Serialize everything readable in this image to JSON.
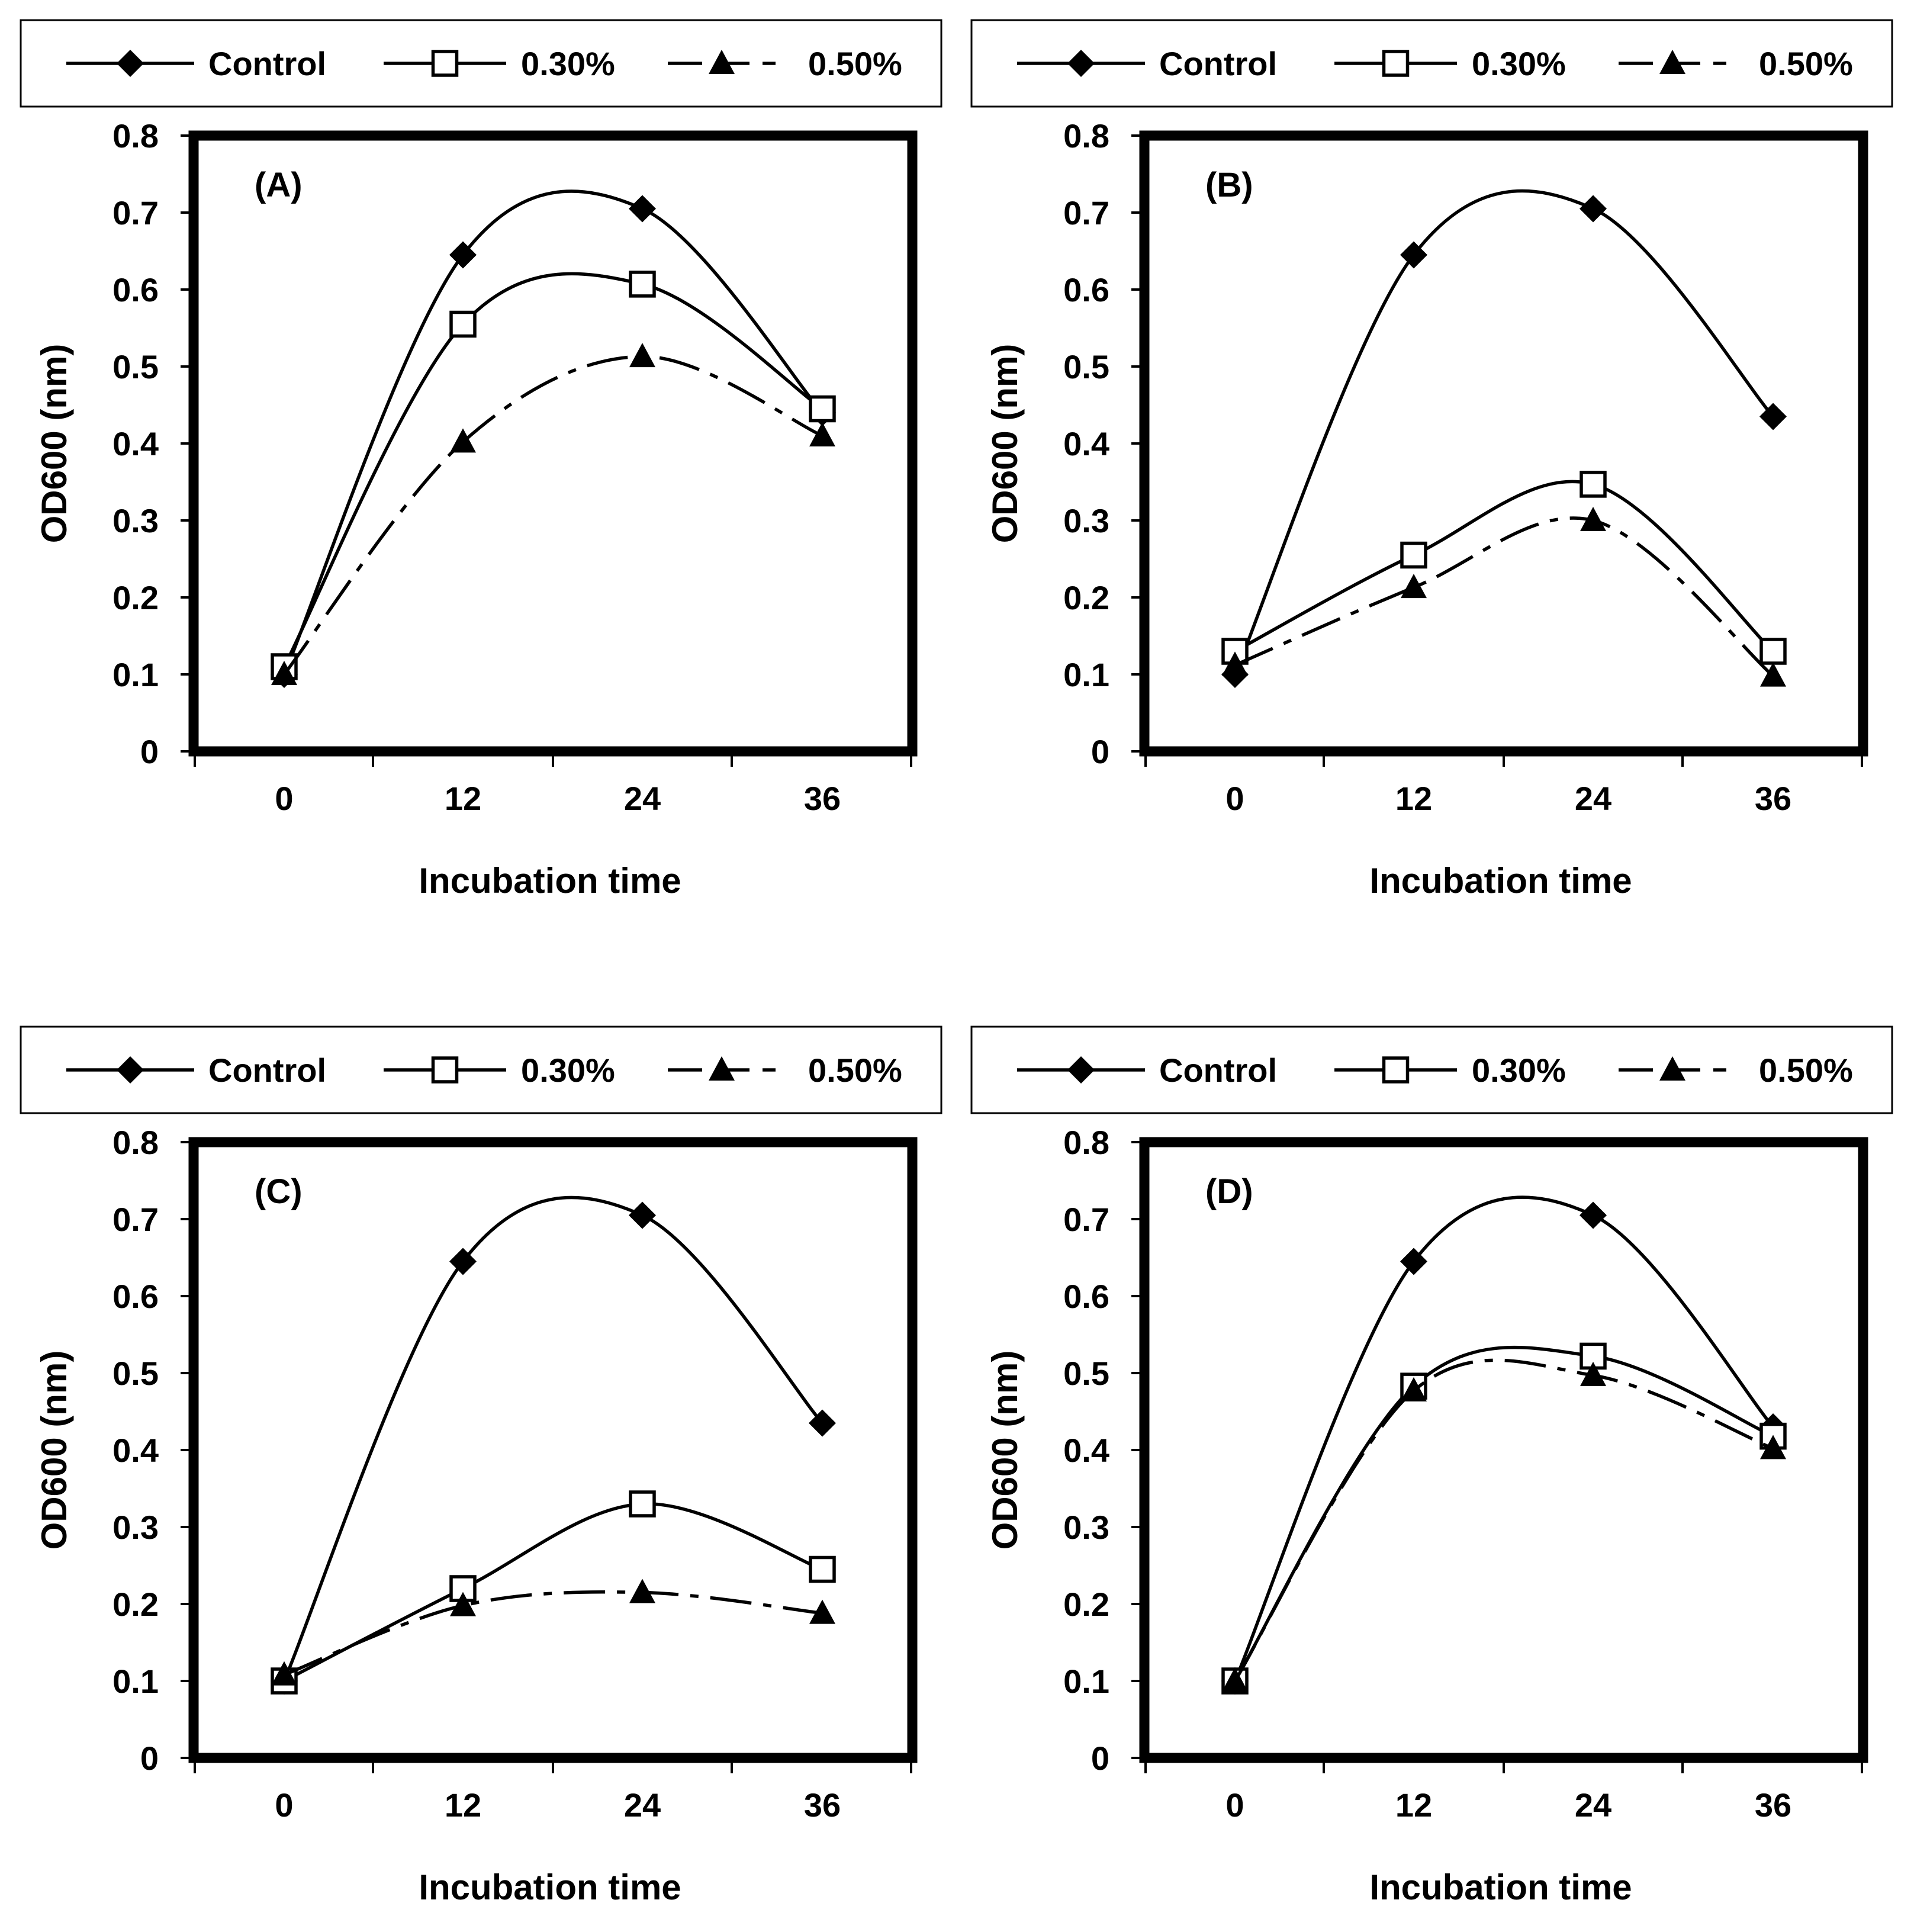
{
  "chart_data": [
    {
      "type": "line",
      "panel_label": "(A)",
      "xlabel": "Incubation time",
      "ylabel": "OD600 (nm)",
      "x": [
        0,
        12,
        24,
        36
      ],
      "x_tick_labels": [
        "0",
        "12",
        "24",
        "36"
      ],
      "ylim": [
        0,
        0.8
      ],
      "y_tick_labels": [
        "0",
        "0.1",
        "0.2",
        "0.3",
        "0.4",
        "0.5",
        "0.6",
        "0.7",
        "0.8"
      ],
      "legend_position": "top",
      "series": [
        {
          "name": "Control",
          "marker": "diamond",
          "line": "solid",
          "values": [
            0.1,
            0.645,
            0.705,
            0.44
          ]
        },
        {
          "name": "0.30%",
          "marker": "open-square",
          "line": "solid",
          "values": [
            0.11,
            0.555,
            0.607,
            0.445
          ]
        },
        {
          "name": "0.50%",
          "marker": "triangle",
          "line": "dash-dot",
          "values": [
            0.1,
            0.402,
            0.513,
            0.41
          ]
        }
      ]
    },
    {
      "type": "line",
      "panel_label": "(B)",
      "xlabel": "Incubation time",
      "ylabel": "OD600 (nm)",
      "x": [
        0,
        12,
        24,
        36
      ],
      "x_tick_labels": [
        "0",
        "12",
        "24",
        "36"
      ],
      "ylim": [
        0,
        0.8
      ],
      "y_tick_labels": [
        "0",
        "0.1",
        "0.2",
        "0.3",
        "0.4",
        "0.5",
        "0.6",
        "0.7",
        "0.8"
      ],
      "legend_position": "top",
      "series": [
        {
          "name": "Control",
          "marker": "diamond",
          "line": "solid",
          "values": [
            0.1,
            0.645,
            0.705,
            0.435
          ]
        },
        {
          "name": "0.30%",
          "marker": "open-square",
          "line": "solid",
          "values": [
            0.13,
            0.255,
            0.347,
            0.13
          ]
        },
        {
          "name": "0.50%",
          "marker": "triangle",
          "line": "dash-dot",
          "values": [
            0.112,
            0.213,
            0.3,
            0.098
          ]
        }
      ]
    },
    {
      "type": "line",
      "panel_label": "(C)",
      "xlabel": "Incubation time",
      "ylabel": "OD600 (nm)",
      "x": [
        0,
        12,
        24,
        36
      ],
      "x_tick_labels": [
        "0",
        "12",
        "24",
        "36"
      ],
      "ylim": [
        0,
        0.8
      ],
      "y_tick_labels": [
        "0",
        "0.1",
        "0.2",
        "0.3",
        "0.4",
        "0.5",
        "0.6",
        "0.7",
        "0.8"
      ],
      "legend_position": "top",
      "series": [
        {
          "name": "Control",
          "marker": "diamond",
          "line": "solid",
          "values": [
            0.1,
            0.645,
            0.705,
            0.435
          ]
        },
        {
          "name": "0.30%",
          "marker": "open-square",
          "line": "solid",
          "values": [
            0.1,
            0.22,
            0.33,
            0.245
          ]
        },
        {
          "name": "0.50%",
          "marker": "triangle",
          "line": "dash-dot",
          "values": [
            0.108,
            0.198,
            0.215,
            0.188
          ]
        }
      ]
    },
    {
      "type": "line",
      "panel_label": "(D)",
      "xlabel": "Incubation time",
      "ylabel": "OD600 (nm)",
      "x": [
        0,
        12,
        24,
        36
      ],
      "x_tick_labels": [
        "0",
        "12",
        "24",
        "36"
      ],
      "ylim": [
        0,
        0.8
      ],
      "y_tick_labels": [
        "0",
        "0.1",
        "0.2",
        "0.3",
        "0.4",
        "0.5",
        "0.6",
        "0.7",
        "0.8"
      ],
      "legend_position": "top",
      "series": [
        {
          "name": "Control",
          "marker": "diamond",
          "line": "solid",
          "values": [
            0.1,
            0.645,
            0.705,
            0.43
          ]
        },
        {
          "name": "0.30%",
          "marker": "open-square",
          "line": "solid",
          "values": [
            0.1,
            0.483,
            0.522,
            0.418
          ]
        },
        {
          "name": "0.50%",
          "marker": "triangle",
          "line": "dash-dot",
          "values": [
            0.1,
            0.477,
            0.497,
            0.402
          ]
        }
      ]
    }
  ]
}
